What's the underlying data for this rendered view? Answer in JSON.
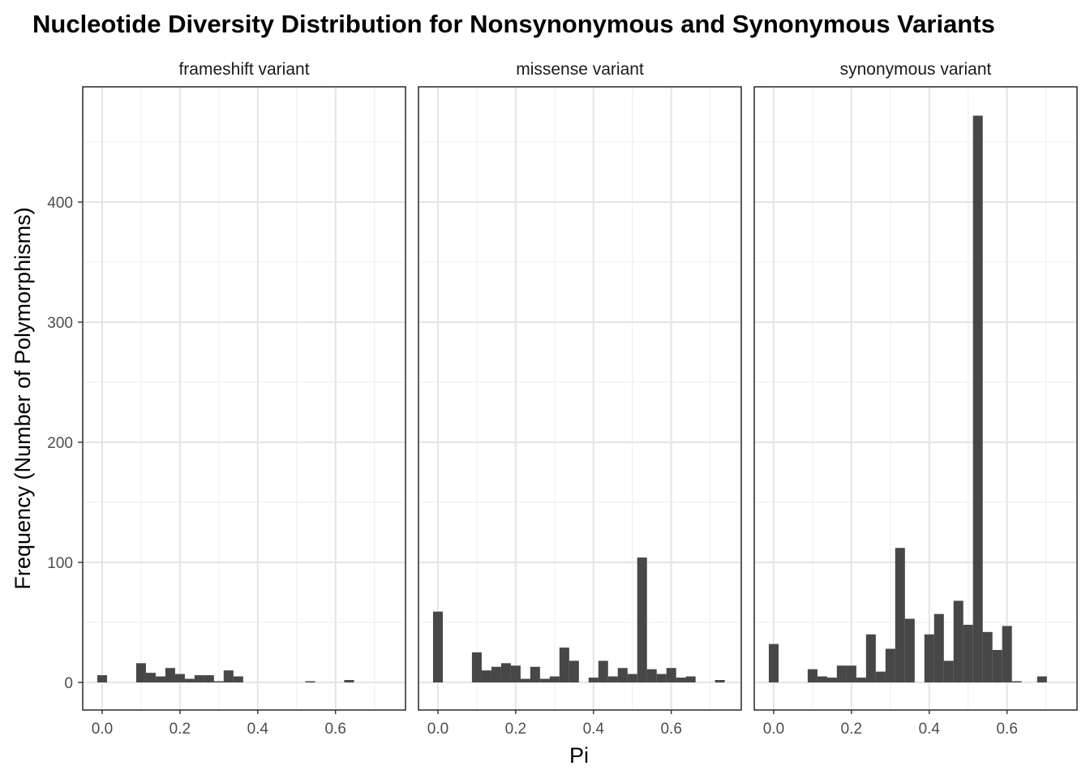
{
  "chart_data": {
    "type": "bar",
    "title": "Nucleotide Diversity Distribution for Nonsynonymous and Synonymous Variants",
    "xlabel": "Pi",
    "ylabel": "Frequency (Number of Polymorphisms)",
    "x_ticks": [
      "0.0",
      "0.2",
      "0.4",
      "0.6"
    ],
    "y_ticks": [
      "0",
      "100",
      "200",
      "300",
      "400"
    ],
    "xlim": [
      -0.05,
      0.78
    ],
    "ylim": [
      -23,
      496
    ],
    "bin_width": 0.0251,
    "grid": true,
    "bar_color": "#474747",
    "panels": [
      {
        "label": "frameshift variant",
        "bins": [
          {
            "x": 0.0,
            "y": 6
          },
          {
            "x": 0.1,
            "y": 16
          },
          {
            "x": 0.125,
            "y": 8
          },
          {
            "x": 0.15,
            "y": 5
          },
          {
            "x": 0.175,
            "y": 12
          },
          {
            "x": 0.2,
            "y": 7
          },
          {
            "x": 0.225,
            "y": 3
          },
          {
            "x": 0.25,
            "y": 6
          },
          {
            "x": 0.275,
            "y": 6
          },
          {
            "x": 0.3,
            "y": 1
          },
          {
            "x": 0.325,
            "y": 10
          },
          {
            "x": 0.35,
            "y": 5
          },
          {
            "x": 0.535,
            "y": 1
          },
          {
            "x": 0.635,
            "y": 2
          }
        ]
      },
      {
        "label": "missense variant",
        "bins": [
          {
            "x": 0.0,
            "y": 59
          },
          {
            "x": 0.1,
            "y": 25
          },
          {
            "x": 0.125,
            "y": 10
          },
          {
            "x": 0.15,
            "y": 13
          },
          {
            "x": 0.175,
            "y": 16
          },
          {
            "x": 0.2,
            "y": 14
          },
          {
            "x": 0.225,
            "y": 3
          },
          {
            "x": 0.25,
            "y": 13
          },
          {
            "x": 0.275,
            "y": 3
          },
          {
            "x": 0.3,
            "y": 5
          },
          {
            "x": 0.325,
            "y": 29
          },
          {
            "x": 0.35,
            "y": 18
          },
          {
            "x": 0.4,
            "y": 4
          },
          {
            "x": 0.425,
            "y": 18
          },
          {
            "x": 0.45,
            "y": 5
          },
          {
            "x": 0.475,
            "y": 12
          },
          {
            "x": 0.5,
            "y": 7
          },
          {
            "x": 0.525,
            "y": 104
          },
          {
            "x": 0.55,
            "y": 11
          },
          {
            "x": 0.575,
            "y": 7
          },
          {
            "x": 0.6,
            "y": 12
          },
          {
            "x": 0.625,
            "y": 4
          },
          {
            "x": 0.65,
            "y": 5
          },
          {
            "x": 0.725,
            "y": 2
          }
        ]
      },
      {
        "label": "synonymous variant",
        "bins": [
          {
            "x": 0.0,
            "y": 32
          },
          {
            "x": 0.1,
            "y": 11
          },
          {
            "x": 0.125,
            "y": 5
          },
          {
            "x": 0.15,
            "y": 4
          },
          {
            "x": 0.175,
            "y": 14
          },
          {
            "x": 0.2,
            "y": 14
          },
          {
            "x": 0.225,
            "y": 4
          },
          {
            "x": 0.25,
            "y": 40
          },
          {
            "x": 0.275,
            "y": 9
          },
          {
            "x": 0.3,
            "y": 28
          },
          {
            "x": 0.325,
            "y": 112
          },
          {
            "x": 0.35,
            "y": 53
          },
          {
            "x": 0.4,
            "y": 40
          },
          {
            "x": 0.425,
            "y": 57
          },
          {
            "x": 0.45,
            "y": 18
          },
          {
            "x": 0.475,
            "y": 68
          },
          {
            "x": 0.5,
            "y": 48
          },
          {
            "x": 0.525,
            "y": 472
          },
          {
            "x": 0.55,
            "y": 42
          },
          {
            "x": 0.575,
            "y": 27
          },
          {
            "x": 0.6,
            "y": 47
          },
          {
            "x": 0.625,
            "y": 1
          },
          {
            "x": 0.69,
            "y": 5
          }
        ]
      }
    ]
  }
}
